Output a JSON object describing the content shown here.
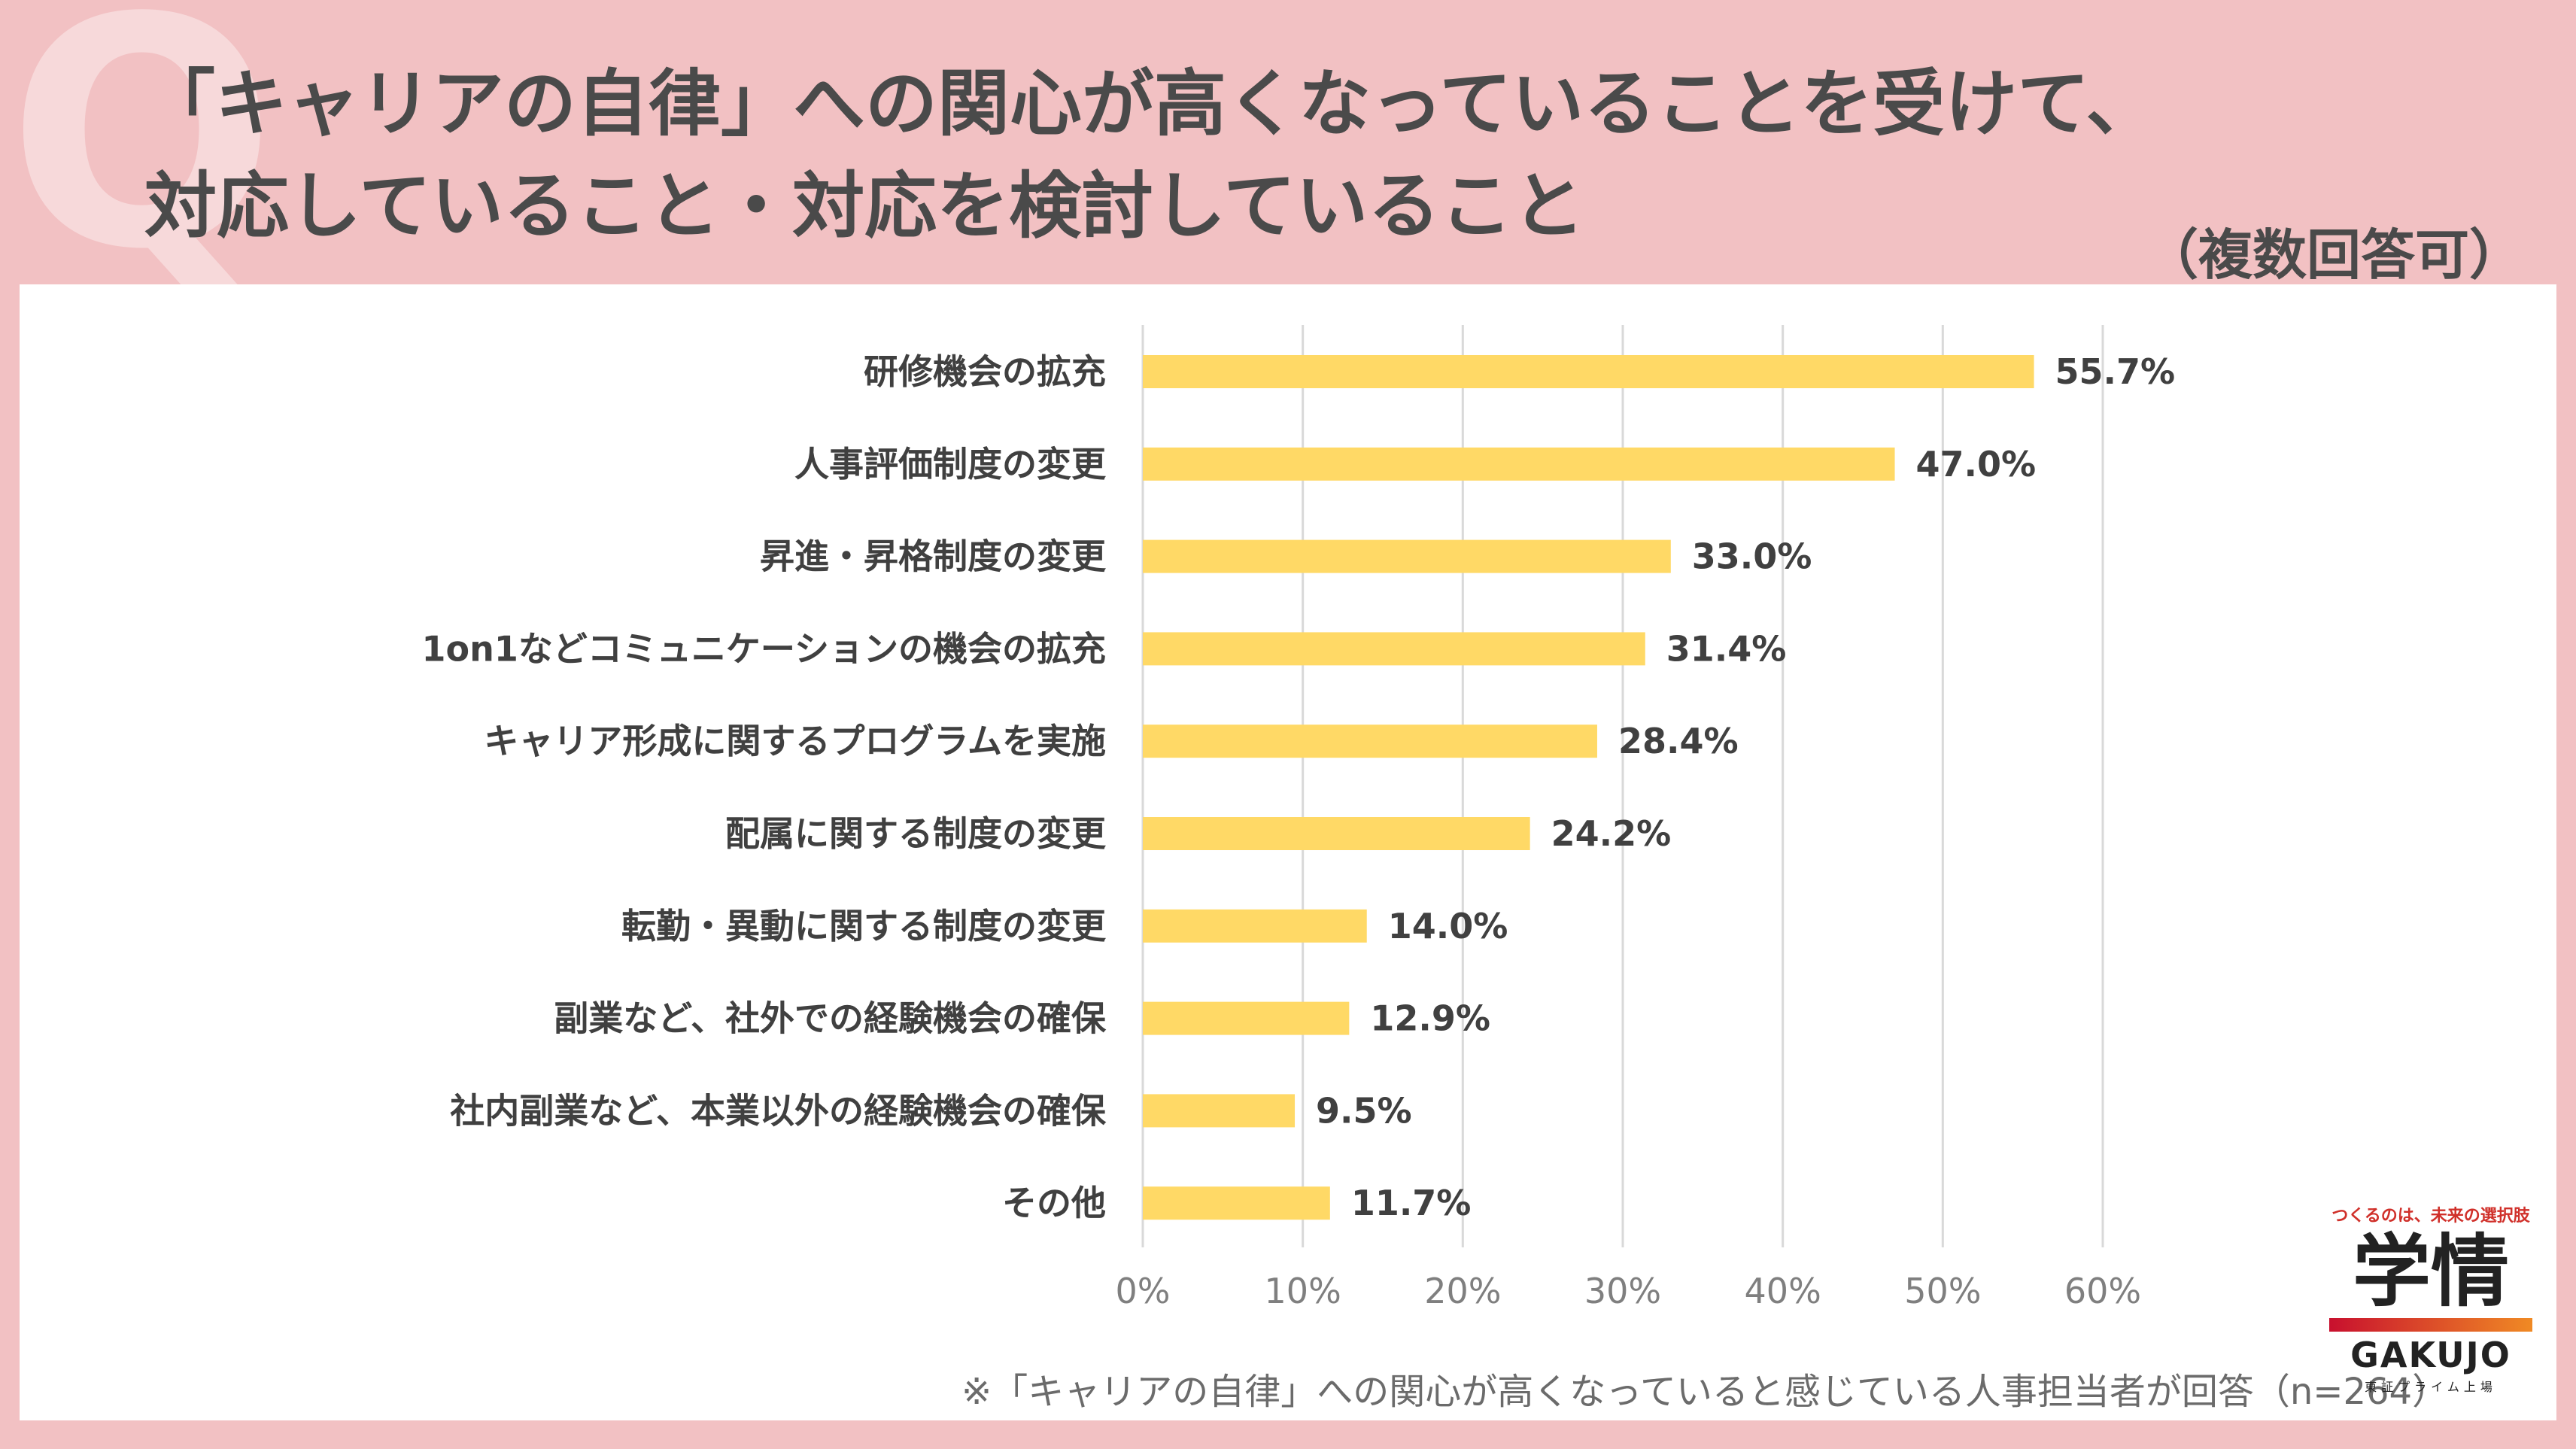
{
  "header": {
    "q_mark": "Q",
    "title_line1": "「キャリアの自律」への関心が高くなっていることを受けて、",
    "title_line2": "対応していること・対応を検討していること",
    "subtitle": "（複数回答可）"
  },
  "footnote": "※「キャリアの自律」への関心が高くなっていると感じている人事担当者が回答（n=264）",
  "logo": {
    "tagline": "つくるのは、未来の選択肢",
    "mark": "学情",
    "wordmark": "GAKUJO",
    "listing": "東証プライム上場"
  },
  "colors": {
    "bar": "#ffd966",
    "grid": "#d9d9d9",
    "label": "#404040",
    "tick": "#7f7f7f",
    "background": "#f2c1c3"
  },
  "chart_data": {
    "type": "bar",
    "orientation": "horizontal",
    "categories": [
      "研修機会の拡充",
      "人事評価制度の変更",
      "昇進・昇格制度の変更",
      "1on1などコミュニケーションの機会の拡充",
      "キャリア形成に関するプログラムを実施",
      "配属に関する制度の変更",
      "転勤・異動に関する制度の変更",
      "副業など、社外での経験機会の確保",
      "社内副業など、本業以外の経験機会の確保",
      "その他"
    ],
    "values": [
      55.7,
      47.0,
      33.0,
      31.4,
      28.4,
      24.2,
      14.0,
      12.9,
      9.5,
      11.7
    ],
    "value_labels": [
      "55.7%",
      "47.0%",
      "33.0%",
      "31.4%",
      "28.4%",
      "24.2%",
      "14.0%",
      "12.9%",
      "9.5%",
      "11.7%"
    ],
    "xlim": [
      0,
      60
    ],
    "xticks": [
      0,
      10,
      20,
      30,
      40,
      50,
      60
    ],
    "xtick_labels": [
      "0%",
      "10%",
      "20%",
      "30%",
      "40%",
      "50%",
      "60%"
    ],
    "title": "",
    "xlabel": "",
    "ylabel": "",
    "grid": "vertical"
  }
}
